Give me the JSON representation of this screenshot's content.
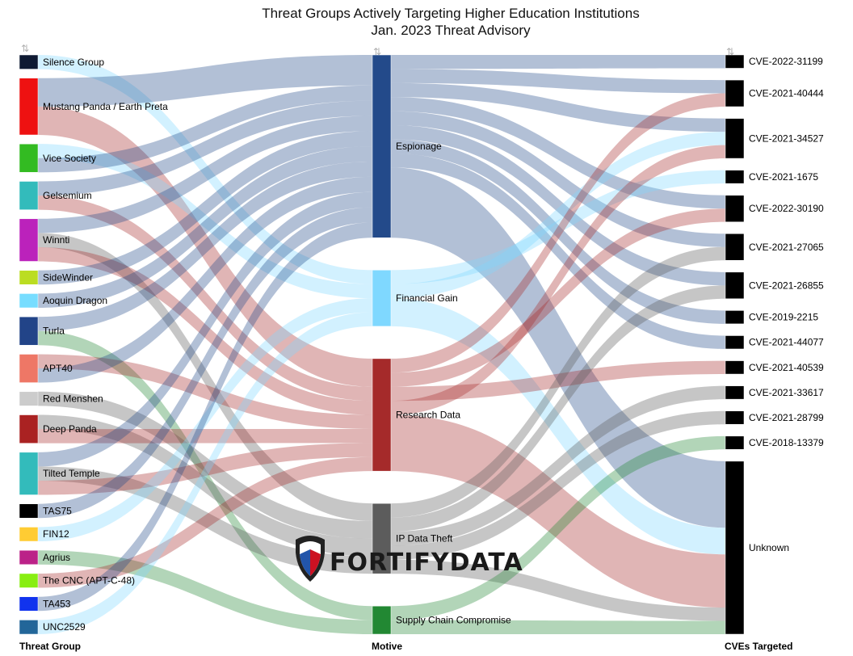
{
  "chart_data": {
    "type": "sankey",
    "title": "Threat Groups Actively Targeting Higher Education Institutions",
    "subtitle": "Jan. 2023 Threat Advisory",
    "columns": [
      "Threat Group",
      "Motive",
      "CVEs Targeted"
    ],
    "sort_icon": "⇅",
    "groups": [
      {
        "name": "Silence Group",
        "color": "#0f1a33"
      },
      {
        "name": "Mustang Panda / Earth Preta",
        "color": "#ee1111"
      },
      {
        "name": "Vice Society",
        "color": "#33bb22"
      },
      {
        "name": "Gelsemium",
        "color": "#33bbbb"
      },
      {
        "name": "Winnti",
        "color": "#bb22bb"
      },
      {
        "name": "SideWinder",
        "color": "#bbdd22"
      },
      {
        "name": "Aoquin Dragon",
        "color": "#77ddff"
      },
      {
        "name": "Turla",
        "color": "#224488"
      },
      {
        "name": "APT40",
        "color": "#ee7766"
      },
      {
        "name": "Red Menshen",
        "color": "#cccccc"
      },
      {
        "name": "Deep Panda",
        "color": "#aa2222"
      },
      {
        "name": "Tilted Temple",
        "color": "#33bbbb"
      },
      {
        "name": "TAS75",
        "color": "#000000"
      },
      {
        "name": "FIN12",
        "color": "#ffcc33"
      },
      {
        "name": "Agrius",
        "color": "#bb2288"
      },
      {
        "name": "The CNC (APT-C-48)",
        "color": "#88ee11"
      },
      {
        "name": "TA453",
        "color": "#1133ee"
      },
      {
        "name": "UNC2529",
        "color": "#226699"
      }
    ],
    "motives": [
      {
        "name": "Espionage",
        "color": "#234a8a"
      },
      {
        "name": "Financial Gain",
        "color": "#7fd8ff"
      },
      {
        "name": "Research Data",
        "color": "#a52a2a"
      },
      {
        "name": "IP Data Theft",
        "color": "#5c5c5c"
      },
      {
        "name": "Supply Chain Compromise",
        "color": "#228833"
      }
    ],
    "cves": [
      {
        "name": "CVE-2022-31199"
      },
      {
        "name": "CVE-2021-40444"
      },
      {
        "name": "CVE-2021-34527"
      },
      {
        "name": "CVE-2021-1675"
      },
      {
        "name": "CVE-2022-30190"
      },
      {
        "name": "CVE-2021-27065"
      },
      {
        "name": "CVE-2021-26855"
      },
      {
        "name": "CVE-2019-2215"
      },
      {
        "name": "CVE-2021-44077"
      },
      {
        "name": "CVE-2021-40539"
      },
      {
        "name": "CVE-2021-33617"
      },
      {
        "name": "CVE-2021-28799"
      },
      {
        "name": "CVE-2018-13379"
      },
      {
        "name": "Unknown"
      }
    ],
    "cve_node_color": "#000000",
    "links_group_motive": [
      [
        "Silence Group",
        "Financial Gain",
        1
      ],
      [
        "Mustang Panda / Earth Preta",
        "Espionage",
        2
      ],
      [
        "Mustang Panda / Earth Preta",
        "Research Data",
        2
      ],
      [
        "Vice Society",
        "Financial Gain",
        1
      ],
      [
        "Vice Society",
        "Espionage",
        1
      ],
      [
        "Gelsemium",
        "Espionage",
        1
      ],
      [
        "Gelsemium",
        "Research Data",
        1
      ],
      [
        "Winnti",
        "Espionage",
        1
      ],
      [
        "Winnti",
        "IP Data Theft",
        1
      ],
      [
        "Winnti",
        "Research Data",
        1
      ],
      [
        "SideWinder",
        "Espionage",
        1
      ],
      [
        "Aoquin Dragon",
        "Espionage",
        1
      ],
      [
        "Turla",
        "Espionage",
        1
      ],
      [
        "Turla",
        "Supply Chain Compromise",
        1
      ],
      [
        "APT40",
        "Research Data",
        1
      ],
      [
        "APT40",
        "Espionage",
        1
      ],
      [
        "Red Menshen",
        "IP Data Theft",
        1
      ],
      [
        "Deep Panda",
        "IP Data Theft",
        1
      ],
      [
        "Deep Panda",
        "Research Data",
        1
      ],
      [
        "Tilted Temple",
        "Espionage",
        1
      ],
      [
        "Tilted Temple",
        "IP Data Theft",
        1
      ],
      [
        "Tilted Temple",
        "Research Data",
        1
      ],
      [
        "TAS75",
        "Espionage",
        1
      ],
      [
        "FIN12",
        "Financial Gain",
        1
      ],
      [
        "Agrius",
        "Supply Chain Compromise",
        1
      ],
      [
        "The CNC (APT-C-48)",
        "Research Data",
        1
      ],
      [
        "TA453",
        "Espionage",
        1
      ],
      [
        "UNC2529",
        "Financial Gain",
        1
      ]
    ],
    "links_motive_cve": [
      [
        "Espionage",
        "CVE-2022-31199",
        1
      ],
      [
        "Espionage",
        "CVE-2021-40444",
        1
      ],
      [
        "Espionage",
        "CVE-2021-34527",
        1
      ],
      [
        "Espionage",
        "CVE-2022-30190",
        1
      ],
      [
        "Espionage",
        "CVE-2021-27065",
        1
      ],
      [
        "Espionage",
        "CVE-2021-26855",
        1
      ],
      [
        "Espionage",
        "CVE-2019-2215",
        1
      ],
      [
        "Espionage",
        "CVE-2021-44077",
        1
      ],
      [
        "Espionage",
        "Unknown",
        5
      ],
      [
        "Financial Gain",
        "CVE-2021-1675",
        1
      ],
      [
        "Financial Gain",
        "CVE-2021-34527",
        1
      ],
      [
        "Financial Gain",
        "Unknown",
        2
      ],
      [
        "Research Data",
        "CVE-2021-40444",
        1
      ],
      [
        "Research Data",
        "CVE-2022-30190",
        1
      ],
      [
        "Research Data",
        "CVE-2021-40539",
        1
      ],
      [
        "Research Data",
        "CVE-2021-34527",
        1
      ],
      [
        "Research Data",
        "Unknown",
        4
      ],
      [
        "IP Data Theft",
        "CVE-2021-27065",
        1
      ],
      [
        "IP Data Theft",
        "CVE-2021-26855",
        1
      ],
      [
        "IP Data Theft",
        "CVE-2021-33617",
        1
      ],
      [
        "IP Data Theft",
        "CVE-2021-28799",
        1
      ],
      [
        "IP Data Theft",
        "Unknown",
        1
      ],
      [
        "Supply Chain Compromise",
        "CVE-2018-13379",
        1
      ],
      [
        "Supply Chain Compromise",
        "Unknown",
        1
      ]
    ]
  },
  "logo": {
    "text": "FORTIFYDATA"
  }
}
